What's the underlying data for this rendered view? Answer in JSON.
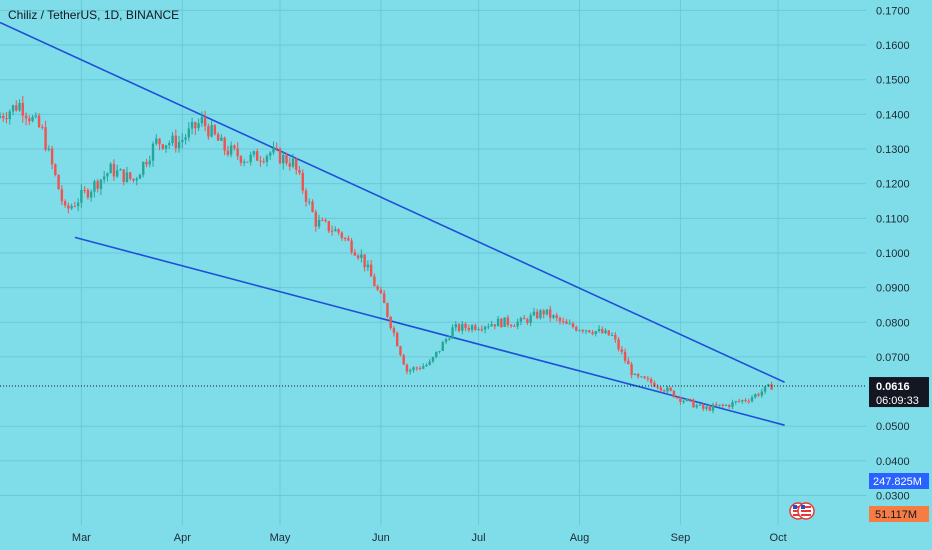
{
  "header": {
    "title": "Chiliz / TetherUS, 1D, BINANCE"
  },
  "colors": {
    "background": "#7fdde9",
    "grid": "#6cc8d6",
    "up": "#26a69a",
    "down": "#ef5350",
    "trendline": "#1e4fd6",
    "price_badge": "#131722",
    "volume_badge": "#2962ff",
    "volume_ma_badge": "#f57c42"
  },
  "chart_data": {
    "type": "candlestick",
    "title": "Chiliz / TetherUS, 1D, BINANCE",
    "xlabel": "",
    "ylabel": "",
    "x_ticks": [
      "Mar",
      "Apr",
      "May",
      "Jun",
      "Jul",
      "Aug",
      "Sep",
      "Oct"
    ],
    "x_tick_dates": [
      "2023-03-01",
      "2023-04-01",
      "2023-05-01",
      "2023-06-01",
      "2023-07-01",
      "2023-08-01",
      "2023-09-01",
      "2023-10-01"
    ],
    "y_ticks": [
      "0.1700",
      "0.1600",
      "0.1500",
      "0.1400",
      "0.1300",
      "0.1200",
      "0.1100",
      "0.1000",
      "0.0900",
      "0.0800",
      "0.0700",
      "0.0500",
      "0.0400",
      "0.0300"
    ],
    "y_tick_values": [
      0.17,
      0.16,
      0.15,
      0.14,
      0.13,
      0.12,
      0.11,
      0.1,
      0.09,
      0.08,
      0.07,
      0.05,
      0.04,
      0.03
    ],
    "ylim": [
      0.0215,
      0.173
    ],
    "xlim": [
      "2023-02-04",
      "2023-10-28"
    ],
    "grid": true,
    "current_price": {
      "value": 0.0616,
      "label": "0.0616",
      "countdown": "06:09:33"
    },
    "volume_badges": {
      "volume": "247.825M",
      "volume_ma": "51.117M"
    },
    "trendlines": [
      {
        "name": "",
        "x": [
          "2023-02-04",
          "2023-10-03"
        ],
        "y": [
          0.1665,
          0.0627
        ]
      },
      {
        "name": "",
        "x": [
          "2023-02-27",
          "2023-10-03"
        ],
        "y": [
          0.1045,
          0.0503
        ]
      }
    ],
    "series": [
      {
        "x": [
          "2023-02-04",
          "2023-02-11",
          "2023-02-18",
          "2023-02-25",
          "2023-03-04",
          "2023-03-11",
          "2023-03-18",
          "2023-03-25",
          "2023-04-01",
          "2023-04-08",
          "2023-04-15",
          "2023-04-22",
          "2023-04-29",
          "2023-05-06",
          "2023-05-13",
          "2023-05-20",
          "2023-05-27",
          "2023-06-03",
          "2023-06-10",
          "2023-06-17",
          "2023-06-24",
          "2023-07-01",
          "2023-07-08",
          "2023-07-15",
          "2023-07-22",
          "2023-07-29",
          "2023-08-05",
          "2023-08-12",
          "2023-08-19",
          "2023-08-26",
          "2023-09-02",
          "2023-09-09",
          "2023-09-16",
          "2023-09-23",
          "2023-09-30"
        ],
        "values": [
          0.139,
          0.143,
          0.135,
          0.112,
          0.118,
          0.124,
          0.121,
          0.132,
          0.132,
          0.138,
          0.13,
          0.127,
          0.129,
          0.126,
          0.109,
          0.106,
          0.099,
          0.085,
          0.066,
          0.068,
          0.078,
          0.079,
          0.08,
          0.08,
          0.083,
          0.079,
          0.078,
          0.076,
          0.064,
          0.062,
          0.058,
          0.055,
          0.056,
          0.058,
          0.0616
        ],
        "name": ""
      }
    ]
  }
}
